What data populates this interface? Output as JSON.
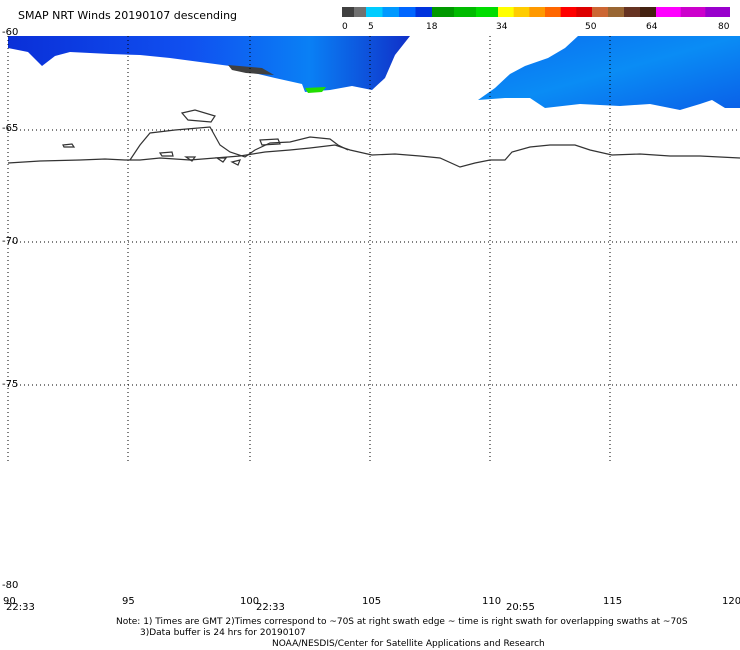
{
  "title": "SMAP NRT Winds  20190107 descending",
  "colorbar": {
    "labels": [
      "0",
      "5",
      "18",
      "34",
      "50",
      "64",
      "80"
    ],
    "segments": [
      {
        "color": "#404040"
      },
      {
        "color": "#707070"
      },
      {
        "color": "#00ccff"
      },
      {
        "color": "#0099ff"
      },
      {
        "color": "#0066ff"
      },
      {
        "color": "#0033dd"
      },
      {
        "color": "#009900"
      },
      {
        "color": "#00bb00"
      },
      {
        "color": "#00dd00"
      },
      {
        "color": "#ffff00"
      },
      {
        "color": "#ffcc00"
      },
      {
        "color": "#ff9900"
      },
      {
        "color": "#ff6600"
      },
      {
        "color": "#ff0000"
      },
      {
        "color": "#dd0000"
      },
      {
        "color": "#cc6633"
      },
      {
        "color": "#996633"
      },
      {
        "color": "#663322"
      },
      {
        "color": "#442211"
      },
      {
        "color": "#ff00ff"
      },
      {
        "color": "#cc00cc"
      },
      {
        "color": "#9900cc"
      }
    ]
  },
  "map": {
    "lat_labels": [
      "-60",
      "-65",
      "-70",
      "-75",
      "-80"
    ],
    "lon_labels": [
      "90",
      "95",
      "100",
      "105",
      "110",
      "115",
      "120"
    ],
    "time_labels": [
      "22:33",
      "22:33",
      "20:55"
    ]
  },
  "notes": {
    "line1": "Note: 1) Times are GMT 2)Times correspond to ~70S at right swath edge ~ time is right swath for overlapping swaths at ~70S",
    "line2": "3)Data buffer is 24 hrs for 20190107",
    "line3": "NOAA/NESDIS/Center for Satellite Applications and Research"
  }
}
